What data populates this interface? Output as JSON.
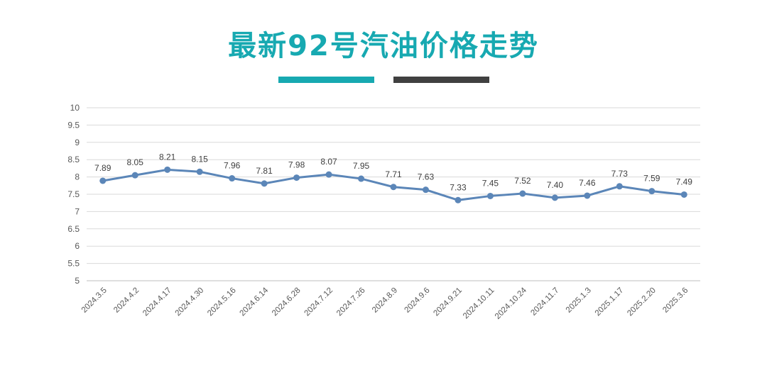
{
  "page": {
    "title": "最新92号汽油价格走势",
    "title_color": "#17a9b1",
    "bar_left_color": "#17a9b1",
    "bar_right_color": "#404040"
  },
  "chart_data": {
    "type": "line",
    "title": "",
    "xlabel": "",
    "ylabel": "",
    "ylim": [
      5,
      10
    ],
    "yticks": [
      5,
      5.5,
      6,
      6.5,
      7,
      7.5,
      8,
      8.5,
      9,
      9.5,
      10
    ],
    "ytick_labels": [
      "5",
      "5.5",
      "6",
      "6.5",
      "7",
      "7.5",
      "8",
      "8.5",
      "9",
      "9.5",
      "10"
    ],
    "grid": true,
    "legend": "none",
    "line_color": "#5b86b8",
    "categories": [
      "2024.3.5",
      "2024.4.2",
      "2024.4.17",
      "2024.4.30",
      "2024.5.16",
      "2024.6.14",
      "2024.6.28",
      "2024.7.12",
      "2024.7.26",
      "2024.8.9",
      "2024.9.6",
      "2024.9.21",
      "2024.10.11",
      "2024.10.24",
      "2024.11.7",
      "2025.1.3",
      "2025.1.17",
      "2025.2.20",
      "2025.3.6"
    ],
    "values": [
      7.89,
      8.05,
      8.21,
      8.15,
      7.96,
      7.81,
      7.98,
      8.07,
      7.95,
      7.71,
      7.63,
      7.33,
      7.45,
      7.52,
      7.4,
      7.46,
      7.73,
      7.59,
      7.49
    ],
    "value_labels": [
      "7.89",
      "8.05",
      "8.21",
      "8.15",
      "7.96",
      "7.81",
      "7.98",
      "8.07",
      "7.95",
      "7.71",
      "7.63",
      "7.33",
      "7.45",
      "7.52",
      "7.40",
      "7.46",
      "7.73",
      "7.59",
      "7.49"
    ]
  }
}
